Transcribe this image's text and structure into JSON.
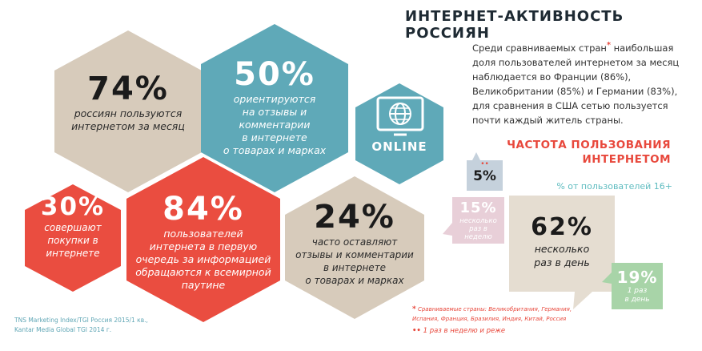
{
  "title": "ИНТЕРНЕТ-АКТИВНОСТЬ РОССИЯН",
  "intro": {
    "line1_before_star": "Среди сравниваемых стран",
    "star": "*",
    "line1_after_star": " наибольшая",
    "rest": [
      "доля пользователей интернетом за месяц",
      "наблюдается во Франции (86%),",
      "Великобритании (85%) и Германии (83%),",
      "для сравнения в США сетью пользуется",
      "почти каждый житель страны."
    ]
  },
  "hexagons": [
    {
      "value": "74%",
      "lines": [
        "россиян пользуются",
        "интернетом за месяц"
      ],
      "color": "#d7cbbb"
    },
    {
      "value": "50%",
      "lines": [
        "ориентируются",
        "на отзывы и",
        "комментарии",
        "в интернете",
        "о товарах и марках"
      ],
      "color": "#5fa9b8"
    },
    {
      "value": "30%",
      "lines": [
        "совершают",
        "покупки в",
        "интернете"
      ],
      "color": "#ea4d40"
    },
    {
      "value": "84%",
      "lines": [
        "пользователей",
        "интернета в первую",
        "очередь за информацией",
        "обращаются к всемирной",
        "паутине"
      ],
      "color": "#ea4d40"
    },
    {
      "value": "24%",
      "lines": [
        "часто оставляют",
        "отзывы и комментарии",
        "в интернете",
        "о товарах и марках"
      ],
      "color": "#d7cbbb"
    }
  ],
  "online_badge": {
    "label": "ONLINE",
    "icon": "www-icon",
    "color": "#5fa9b8"
  },
  "frequency": {
    "title_lines": [
      "ЧАСТОТА ПОЛЬЗОВАНИЯ",
      "ИНТЕРНЕТОМ"
    ],
    "subtitle": "% от пользователей 16+",
    "bubbles": [
      {
        "value": "5%",
        "stars": "••",
        "caption": [],
        "color": "#c5d1dc"
      },
      {
        "value": "15%",
        "caption": [
          "несколько",
          "раз в",
          "неделю"
        ],
        "color": "#e8cfd8"
      },
      {
        "value": "62%",
        "caption": [
          "несколько",
          "раз в день"
        ],
        "color": "#e5ddd1"
      },
      {
        "value": "19%",
        "caption": [
          "1 раз",
          "в день"
        ],
        "color": "#a8d4a8"
      }
    ]
  },
  "source": [
    "TNS Marketing Index/TGI Россия 2015/1 кв.,",
    "Kantar Media Global TGI 2014 г."
  ],
  "notes": {
    "note1_mark": "*",
    "note1": "Сравниваемые страны: Великобритания, Германия, Испания, Франция, Бразилия, Индия, Китай, Россия",
    "note2_mark": "••",
    "note2": "1 раз в неделю и реже"
  },
  "colors": {
    "red": "#e8483c",
    "teal": "#5fbcc0",
    "dark": "#1e2a33"
  }
}
